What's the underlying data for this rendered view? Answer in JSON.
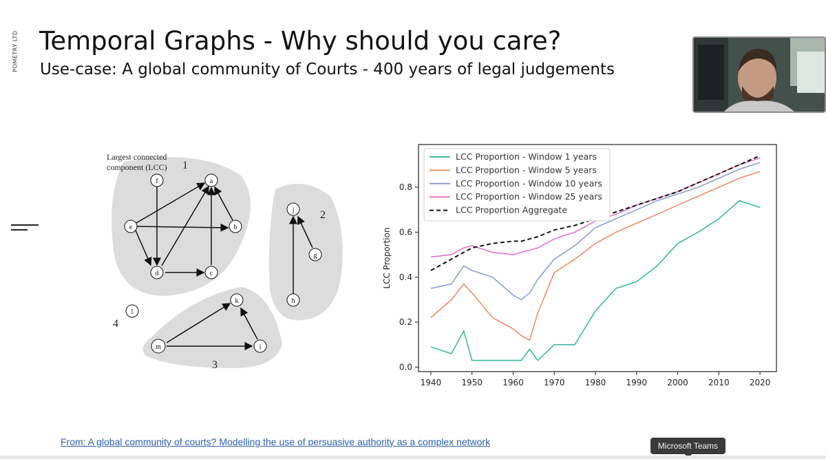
{
  "brand": {
    "vertical_text": "POMETRY LTD"
  },
  "slide": {
    "title": "Temporal Graphs - Why should you care?",
    "subtitle": "Use-case: A global community of Courts - 400 years of legal judgements"
  },
  "graph_figure": {
    "lcc_label_line1": "Largest connected",
    "lcc_label_line2": "component (LCC)",
    "component_labels": [
      "1",
      "2",
      "3",
      "4"
    ],
    "nodes": [
      "f",
      "a",
      "e",
      "b",
      "d",
      "c",
      "j",
      "g",
      "h",
      "l",
      "k",
      "m",
      "i"
    ]
  },
  "chart_data": {
    "type": "line",
    "title": "",
    "xlabel": "",
    "ylabel": "LCC Proportion",
    "xlim": [
      1937,
      2024
    ],
    "ylim": [
      -0.02,
      0.99
    ],
    "xticks": [
      "1940",
      "1950",
      "1960",
      "1970",
      "1980",
      "1990",
      "2000",
      "2010",
      "2020"
    ],
    "yticks": [
      "0.0",
      "0.2",
      "0.4",
      "0.6",
      "0.8"
    ],
    "legend_position": "top-left",
    "grid": false,
    "x": [
      1940,
      1945,
      1948,
      1950,
      1955,
      1960,
      1962,
      1964,
      1966,
      1970,
      1975,
      1980,
      1985,
      1990,
      1995,
      2000,
      2005,
      2010,
      2015,
      2020
    ],
    "series": [
      {
        "name": "LCC Proportion - Window 1 years",
        "color": "#3cb9a0",
        "dash": "solid",
        "values": [
          0.09,
          0.06,
          0.16,
          0.03,
          0.03,
          0.03,
          0.03,
          0.08,
          0.03,
          0.1,
          0.1,
          0.25,
          0.35,
          0.38,
          0.45,
          0.55,
          0.6,
          0.66,
          0.74,
          0.71
        ]
      },
      {
        "name": "LCC Proportion - Window 5 years",
        "color": "#f08c64",
        "dash": "solid",
        "values": [
          0.22,
          0.3,
          0.37,
          0.33,
          0.22,
          0.17,
          0.14,
          0.12,
          0.24,
          0.42,
          0.48,
          0.55,
          0.6,
          0.64,
          0.68,
          0.72,
          0.76,
          0.8,
          0.84,
          0.87
        ]
      },
      {
        "name": "LCC Proportion - Window 10 years",
        "color": "#8c9ed2",
        "dash": "solid",
        "values": [
          0.35,
          0.37,
          0.45,
          0.43,
          0.4,
          0.32,
          0.3,
          0.33,
          0.39,
          0.48,
          0.54,
          0.62,
          0.66,
          0.7,
          0.74,
          0.77,
          0.8,
          0.84,
          0.88,
          0.91
        ]
      },
      {
        "name": "LCC Proportion - Window 25 years",
        "color": "#e673c8",
        "dash": "solid",
        "values": [
          0.49,
          0.5,
          0.53,
          0.54,
          0.51,
          0.5,
          0.51,
          0.52,
          0.53,
          0.57,
          0.6,
          0.65,
          0.68,
          0.72,
          0.75,
          0.78,
          0.82,
          0.86,
          0.9,
          0.93
        ]
      },
      {
        "name": "LCC Proportion Aggregate",
        "color": "#111111",
        "dash": "dashed",
        "values": [
          0.43,
          0.48,
          0.51,
          0.53,
          0.55,
          0.56,
          0.56,
          0.57,
          0.58,
          0.61,
          0.63,
          0.66,
          0.69,
          0.72,
          0.75,
          0.78,
          0.82,
          0.86,
          0.9,
          0.94
        ]
      }
    ]
  },
  "source_link": {
    "text": "From: A global community of courts? Modelling the use of persuasive authority as a complex network"
  },
  "tooltip": {
    "text": "Microsoft Teams"
  },
  "colors": {
    "link": "#2b5fb0",
    "blob": "#dddddd",
    "tooltip_bg": "#3a3a3a"
  }
}
